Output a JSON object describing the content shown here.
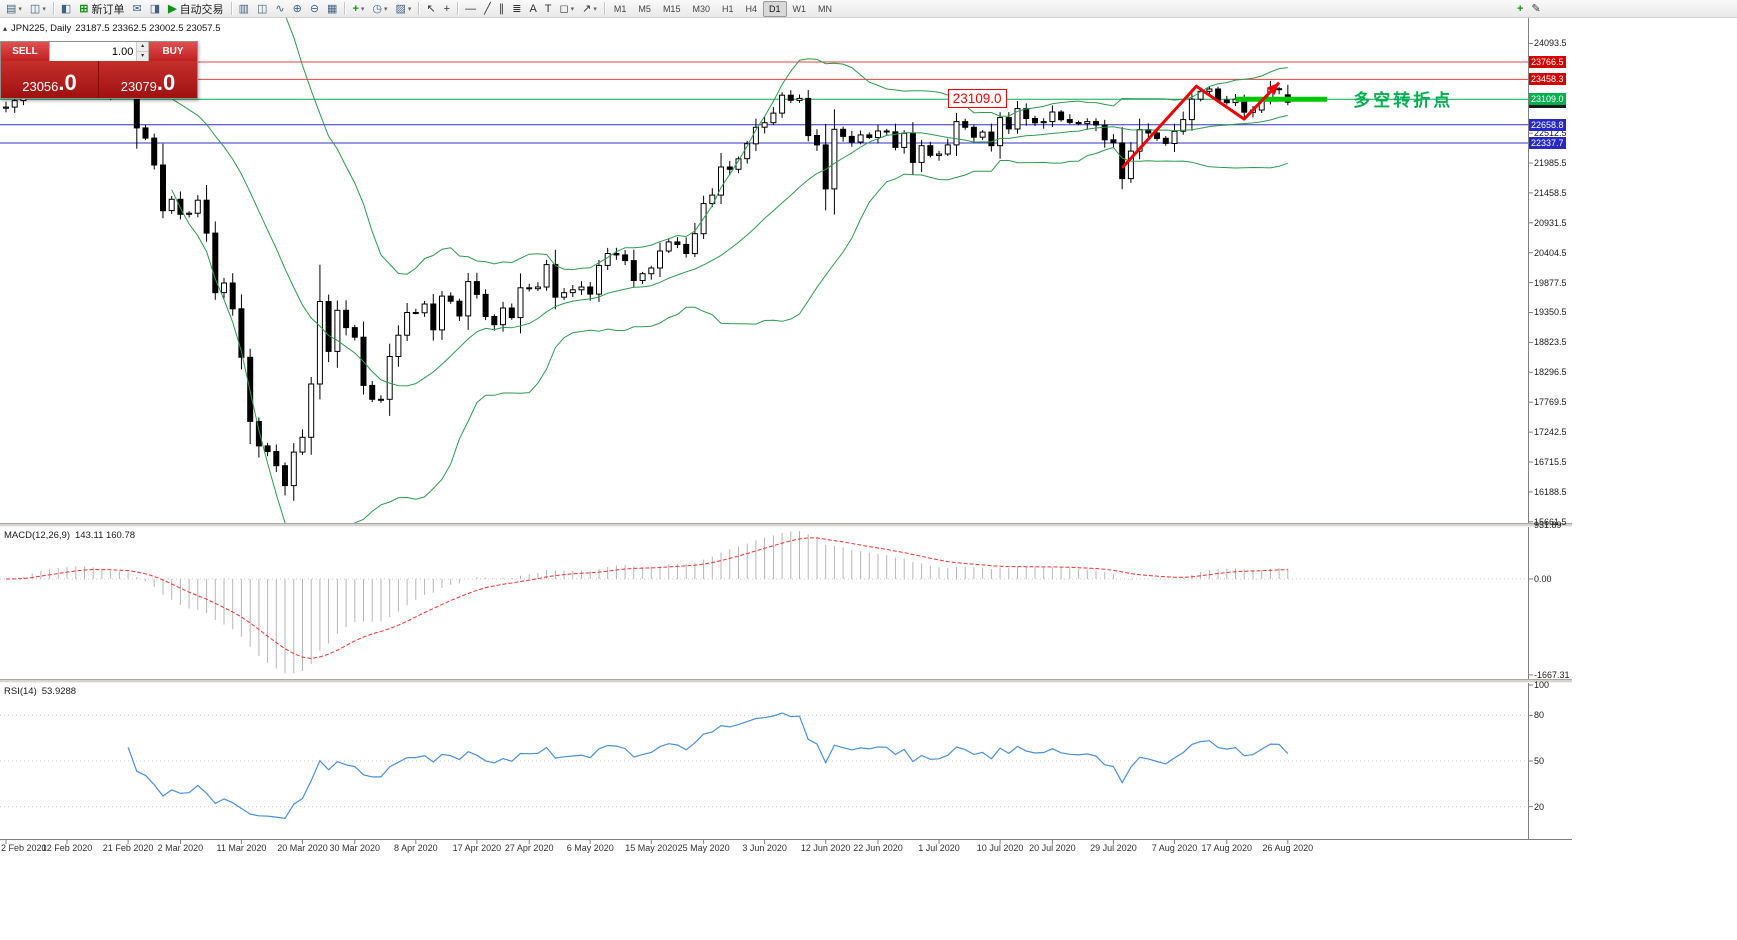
{
  "toolbar": {
    "groups": [
      [
        {
          "name": "new-chart",
          "glyph": "▤",
          "dd": true
        },
        {
          "name": "profiles",
          "glyph": "◫",
          "dd": true
        }
      ],
      [
        {
          "name": "market-watch",
          "glyph": "◧"
        },
        {
          "name": "new-order",
          "glyph": "⊞",
          "cls": "green",
          "label": "新订单"
        },
        {
          "name": "alerts",
          "glyph": "✉"
        },
        {
          "name": "strategy-tester",
          "glyph": "◨"
        },
        {
          "name": "autotrading",
          "glyph": "▶",
          "cls": "green",
          "label": "自动交易"
        }
      ],
      [
        {
          "name": "bar-chart-mode",
          "glyph": "▥"
        },
        {
          "name": "candlestick-mode",
          "glyph": "◫"
        },
        {
          "name": "line-chart-mode",
          "glyph": "∿"
        },
        {
          "name": "zoom-in",
          "glyph": "⊕"
        },
        {
          "name": "zoom-out",
          "glyph": "⊖"
        },
        {
          "name": "grid",
          "glyph": "▦"
        }
      ],
      [
        {
          "name": "indicators",
          "glyph": "+",
          "cls": "green",
          "dd": true
        },
        {
          "name": "periods",
          "glyph": "◷",
          "dd": true
        },
        {
          "name": "templates",
          "glyph": "▨",
          "dd": true
        }
      ],
      [
        {
          "name": "cursor",
          "glyph": "↖",
          "cls": "dark"
        },
        {
          "name": "crosshair",
          "glyph": "+",
          "cls": "dark"
        }
      ],
      [
        {
          "name": "horizontal-line",
          "glyph": "—",
          "cls": "dark"
        },
        {
          "name": "trendline",
          "glyph": "╱",
          "cls": "dark"
        },
        {
          "name": "equidistant-channel",
          "glyph": "∥",
          "cls": "dark"
        },
        {
          "name": "fibonacci",
          "glyph": "≣",
          "cls": "dark"
        },
        {
          "name": "text",
          "glyph": "A",
          "cls": "dark"
        },
        {
          "name": "text-label",
          "glyph": "T",
          "cls": "dark"
        },
        {
          "name": "shapes",
          "glyph": "◻",
          "cls": "dark",
          "dd": true
        },
        {
          "name": "arrows",
          "glyph": "↗",
          "cls": "dark",
          "dd": true
        }
      ]
    ],
    "timeframes": [
      "M1",
      "M5",
      "M15",
      "M30",
      "H1",
      "H4",
      "D1",
      "W1",
      "MN"
    ],
    "active_timeframe": "D1",
    "right_items": [
      {
        "name": "add-indicator",
        "glyph": "+",
        "cls": "green"
      },
      {
        "name": "edit-object",
        "glyph": "✎",
        "cls": "dark"
      }
    ]
  },
  "chart": {
    "symbol_period": "JPN225, Daily",
    "ohlc": "23187.5 23362.5 23002.5 23057.5"
  },
  "one_click": {
    "sell_label": "SELL",
    "buy_label": "BUY",
    "volume": "1.00",
    "sell_price_main": "23056",
    "sell_price_pips": ".0",
    "buy_price_main": "23079",
    "buy_price_pips": ".0"
  },
  "indicators": {
    "macd": {
      "name": "MACD(12,26,9)",
      "value": "143.11 160.78"
    },
    "rsi": {
      "name": "RSI(14)",
      "value": "53.9288"
    }
  },
  "chart_data": {
    "type": "candlestick",
    "symbol": "JPN225",
    "period": "Daily",
    "title_ohlc": {
      "open": 23187.5,
      "high": 23362.5,
      "low": 23002.5,
      "close": 23057.5
    },
    "first_open": 22950,
    "closes": [
      22970,
      23085,
      23320,
      23870,
      23830,
      23690,
      23740,
      23860,
      23830,
      23690,
      23525,
      23195,
      23400,
      23480,
      23385,
      22605,
      22425,
      21950,
      21145,
      21345,
      21080,
      21100,
      21330,
      20750,
      19700,
      19870,
      19415,
      18560,
      17430,
      17000,
      16900,
      16650,
      16300,
      16890,
      17150,
      18090,
      19545,
      18665,
      19390,
      19085,
      18915,
      18065,
      17820,
      17820,
      18575,
      18950,
      19350,
      19345,
      19500,
      19045,
      19640,
      19550,
      19290,
      19895,
      19670,
      19280,
      19135,
      19430,
      19260,
      19785,
      19770,
      19800,
      20195,
      19620,
      19700,
      19750,
      19800,
      19675,
      20180,
      20390,
      20365,
      20265,
      19915,
      20035,
      20135,
      20435,
      20595,
      20550,
      20390,
      20740,
      21270,
      21420,
      21915,
      21875,
      22060,
      22325,
      22615,
      22695,
      22865,
      23180,
      23090,
      23125,
      22470,
      22305,
      21530,
      22580,
      22455,
      22355,
      22480,
      22435,
      22550,
      22535,
      22260,
      22510,
      21995,
      22290,
      22120,
      22145,
      22305,
      22715,
      22615,
      22440,
      22530,
      22290,
      22785,
      22585,
      22945,
      22770,
      22695,
      22715,
      22885,
      22750,
      22700,
      22680,
      22715,
      22655,
      22395,
      22340,
      21710,
      22195,
      22575,
      22515,
      22420,
      22330,
      22545,
      22750,
      23110,
      23250,
      23290,
      23095,
      23050,
      23110,
      22880,
      22920,
      23100,
      23295,
      23290,
      23057.5
    ],
    "last_candle": [
      23187.5,
      23362.5,
      23002.5,
      23057.5
    ],
    "candle_colors": {
      "up_fill": "#ffffff",
      "down_fill": "#000000",
      "outline": "#000000"
    },
    "bollinger": {
      "period": 20,
      "deviation": 2,
      "color": "#2e9b4e"
    },
    "macd": {
      "params": [
        12,
        26,
        9
      ],
      "current_main": 143.11,
      "current_signal": 160.78,
      "histogram_color": "#b5b5b5",
      "signal_color": "#ee3333",
      "scale_max": 931.89,
      "scale_min": -1667.31
    },
    "rsi": {
      "period": 14,
      "current": 53.9288,
      "color": "#4a90d9",
      "levels": [
        80,
        50,
        20
      ],
      "range": [
        0,
        100
      ]
    },
    "y_ticks": [
      24093.5,
      22512.5,
      21985.5,
      21458.5,
      20931.5,
      20404.5,
      19877.5,
      19350.5,
      18823.5,
      18296.5,
      17769.5,
      17242.5,
      16715.5,
      16188.5,
      15661.5
    ],
    "levels": [
      {
        "price": 23766.5,
        "color": "#e84040",
        "width": 1
      },
      {
        "price": 23458.3,
        "color": "#e84040",
        "width": 1
      },
      {
        "price": 23109.0,
        "color": "#00b050",
        "width": 1
      },
      {
        "price": 22658.8,
        "color": "#3030c8",
        "width": 1
      },
      {
        "price": 22337.7,
        "color": "#3030c8",
        "width": 1
      }
    ],
    "markers": [
      {
        "price": 23766.5,
        "text": "23766.5",
        "color": "#d40000"
      },
      {
        "price": 23458.3,
        "text": "23458.3",
        "color": "#d40000"
      },
      {
        "price": 23057.5,
        "text": "23057.5",
        "color": "#1a1a1a"
      },
      {
        "price": 23109.0,
        "text": "23109.0",
        "color": "#00b050"
      },
      {
        "price": 22658.8,
        "text": "22658.8",
        "color": "#2828c8"
      },
      {
        "price": 22337.7,
        "text": "22337.7",
        "color": "#2828c8"
      }
    ]
  },
  "axis": {
    "macd_ticks": [
      {
        "v": 931.89,
        "t": "931.89"
      },
      {
        "v": 0,
        "t": "0.00"
      },
      {
        "v": -1667.31,
        "t": "-1667.31"
      }
    ],
    "rsi_ticks": [
      {
        "v": 100,
        "t": "100"
      },
      {
        "v": 80,
        "t": "80"
      },
      {
        "v": 50,
        "t": "50"
      },
      {
        "v": 20,
        "t": "20"
      }
    ],
    "dates": [
      {
        "label": "2 Feb 2020",
        "idx": 0
      },
      {
        "label": "12 Feb 2020",
        "idx": 7
      },
      {
        "label": "21 Feb 2020",
        "idx": 14
      },
      {
        "label": "2 Mar 2020",
        "idx": 20
      },
      {
        "label": "11 Mar 2020",
        "idx": 27
      },
      {
        "label": "20 Mar 2020",
        "idx": 34
      },
      {
        "label": "30 Mar 2020",
        "idx": 40
      },
      {
        "label": "8 Apr 2020",
        "idx": 47
      },
      {
        "label": "17 Apr 2020",
        "idx": 54
      },
      {
        "label": "27 Apr 2020",
        "idx": 60
      },
      {
        "label": "6 May 2020",
        "idx": 67
      },
      {
        "label": "15 May 2020",
        "idx": 74
      },
      {
        "label": "25 May 2020",
        "idx": 80
      },
      {
        "label": "3 Jun 2020",
        "idx": 87
      },
      {
        "label": "12 Jun 2020",
        "idx": 94
      },
      {
        "label": "22 Jun 2020",
        "idx": 100
      },
      {
        "label": "1 Jul 2020",
        "idx": 107
      },
      {
        "label": "10 Jul 2020",
        "idx": 114
      },
      {
        "label": "20 Jul 2020",
        "idx": 120
      },
      {
        "label": "29 Jul 2020",
        "idx": 127
      },
      {
        "label": "7 Aug 2020",
        "idx": 134
      },
      {
        "label": "17 Aug 2020",
        "idx": 140
      },
      {
        "label": "26 Aug 2020",
        "idx": 147
      }
    ]
  },
  "annotations": {
    "price_box": {
      "text": "23109.0",
      "idx": 108,
      "price": 23109.0
    },
    "zigzag": {
      "color": "#f00000",
      "points": [
        [
          128,
          21900
        ],
        [
          136.5,
          23340
        ],
        [
          142,
          22760
        ],
        [
          146,
          23400
        ]
      ]
    },
    "bold_segment": {
      "price": 23109.0,
      "idx_from": 141,
      "idx_to": 151.5,
      "color": "#00c800"
    },
    "label": {
      "text": "多空转折点",
      "idx": 154.5,
      "price": 23150,
      "color": "#00b050"
    }
  }
}
